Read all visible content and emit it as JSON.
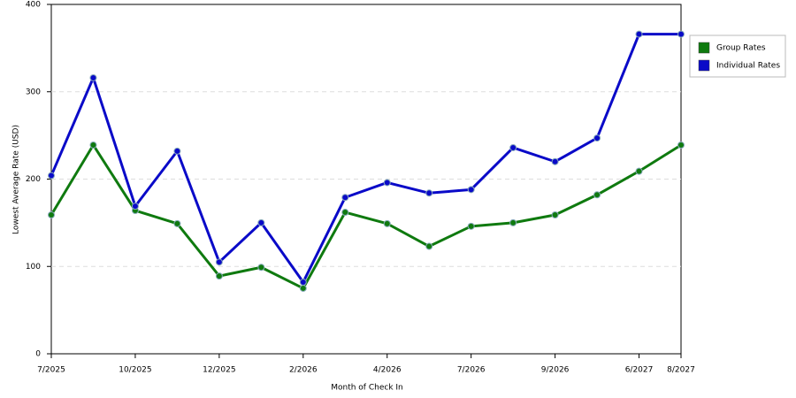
{
  "chart_data": {
    "type": "line",
    "x_label": "Month of Check In",
    "y_label": "Lowest Average Rate (USD)",
    "categories": [
      "7/2025",
      null,
      "10/2025",
      null,
      "12/2025",
      null,
      "2/2026",
      null,
      "4/2026",
      null,
      "7/2026",
      null,
      "9/2026",
      null,
      "6/2027",
      "8/2027"
    ],
    "series": [
      {
        "name": "Group Rates",
        "color": "#0f7a0f",
        "values": [
          159,
          239,
          164,
          149,
          89,
          99,
          75,
          162,
          149,
          123,
          146,
          150,
          159,
          182,
          209,
          239
        ]
      },
      {
        "name": "Individual Rates",
        "color": "#0a0ac8",
        "values": [
          204,
          316,
          169,
          232,
          105,
          150,
          82,
          179,
          196,
          184,
          188,
          236,
          220,
          247,
          366,
          366
        ]
      }
    ],
    "ylim": [
      0,
      400
    ],
    "yticks": [
      0,
      100,
      200,
      300,
      400
    ],
    "grid": true,
    "legend": "right"
  }
}
